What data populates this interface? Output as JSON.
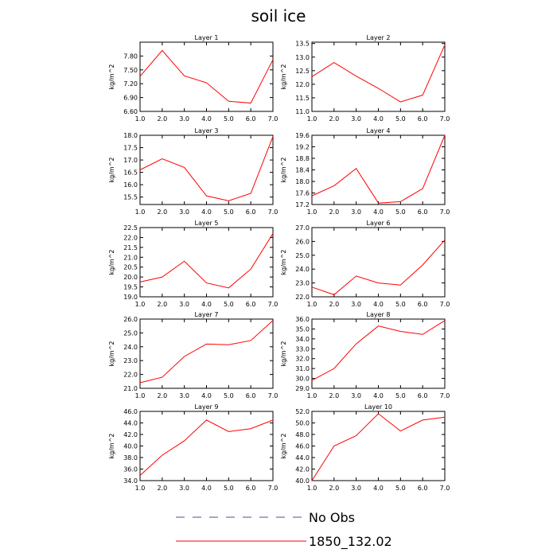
{
  "title": "soil ice",
  "legend": {
    "placement": "bottom-center",
    "entries": [
      {
        "label": "No Obs",
        "color": "#4b4b9a",
        "dash": true
      },
      {
        "label": "1850_132.02",
        "color": "#ff0000",
        "dash": false
      }
    ]
  },
  "chart_data": [
    {
      "type": "line",
      "title": "Layer 1",
      "xlabel": "",
      "ylabel": "kg/m^2",
      "x": [
        1,
        2,
        3,
        4,
        5,
        6,
        7
      ],
      "xlim": [
        1,
        7
      ],
      "xticks": [
        "1.0",
        "2.0",
        "3.0",
        "4.0",
        "5.0",
        "6.0",
        "7.0"
      ],
      "ylim": [
        6.6,
        8.1
      ],
      "yticks": [
        "6.60",
        "6.90",
        "7.20",
        "7.50",
        "7.80"
      ],
      "series": [
        {
          "name": "1850_132.02",
          "color": "#ff0000",
          "values": [
            7.36,
            7.92,
            7.37,
            7.22,
            6.82,
            6.78,
            7.72
          ]
        }
      ]
    },
    {
      "type": "line",
      "title": "Layer 2",
      "xlabel": "",
      "ylabel": "kg/m^2",
      "x": [
        1,
        2,
        3,
        4,
        5,
        6,
        7
      ],
      "xlim": [
        1,
        7
      ],
      "xticks": [
        "1.0",
        "2.0",
        "3.0",
        "4.0",
        "5.0",
        "6.0",
        "7.0"
      ],
      "ylim": [
        11.0,
        13.55
      ],
      "yticks": [
        "11.0",
        "11.5",
        "12.0",
        "12.5",
        "13.0",
        "13.5"
      ],
      "series": [
        {
          "name": "1850_132.02",
          "color": "#ff0000",
          "values": [
            12.28,
            12.8,
            12.3,
            11.85,
            11.35,
            11.6,
            13.45
          ]
        }
      ]
    },
    {
      "type": "line",
      "title": "Layer 3",
      "xlabel": "",
      "ylabel": "kg/m^2",
      "x": [
        1,
        2,
        3,
        4,
        5,
        6,
        7
      ],
      "xlim": [
        1,
        7
      ],
      "xticks": [
        "1.0",
        "2.0",
        "3.0",
        "4.0",
        "5.0",
        "6.0",
        "7.0"
      ],
      "ylim": [
        15.2,
        18.0
      ],
      "yticks": [
        "15.5",
        "16.0",
        "16.5",
        "17.0",
        "17.5",
        "18.0"
      ],
      "series": [
        {
          "name": "1850_132.02",
          "color": "#ff0000",
          "values": [
            16.6,
            17.05,
            16.7,
            15.55,
            15.35,
            15.65,
            17.95
          ]
        }
      ]
    },
    {
      "type": "line",
      "title": "Layer 4",
      "xlabel": "",
      "ylabel": "kg/m^2",
      "x": [
        1,
        2,
        3,
        4,
        5,
        6,
        7
      ],
      "xlim": [
        1,
        7
      ],
      "xticks": [
        "1.0",
        "2.0",
        "3.0",
        "4.0",
        "5.0",
        "6.0",
        "7.0"
      ],
      "ylim": [
        17.2,
        19.6
      ],
      "yticks": [
        "17.2",
        "17.6",
        "18.0",
        "18.4",
        "18.8",
        "19.2",
        "19.6"
      ],
      "series": [
        {
          "name": "1850_132.02",
          "color": "#ff0000",
          "values": [
            17.5,
            17.85,
            18.45,
            17.25,
            17.3,
            17.75,
            19.6
          ]
        }
      ]
    },
    {
      "type": "line",
      "title": "Layer 5",
      "xlabel": "",
      "ylabel": "kg/m^2",
      "x": [
        1,
        2,
        3,
        4,
        5,
        6,
        7
      ],
      "xlim": [
        1,
        7
      ],
      "xticks": [
        "1.0",
        "2.0",
        "3.0",
        "4.0",
        "5.0",
        "6.0",
        "7.0"
      ],
      "ylim": [
        19.0,
        22.5
      ],
      "yticks": [
        "19.0",
        "19.5",
        "20.0",
        "20.5",
        "21.0",
        "21.5",
        "22.0",
        "22.5"
      ],
      "series": [
        {
          "name": "1850_132.02",
          "color": "#ff0000",
          "values": [
            19.75,
            20.0,
            20.8,
            19.7,
            19.45,
            20.4,
            22.2
          ]
        }
      ]
    },
    {
      "type": "line",
      "title": "Layer 6",
      "xlabel": "",
      "ylabel": "kg/m^2",
      "x": [
        1,
        2,
        3,
        4,
        5,
        6,
        7
      ],
      "xlim": [
        1,
        7
      ],
      "xticks": [
        "1.0",
        "2.0",
        "3.0",
        "4.0",
        "5.0",
        "6.0",
        "7.0"
      ],
      "ylim": [
        22.0,
        27.0
      ],
      "yticks": [
        "22.0",
        "23.0",
        "24.0",
        "25.0",
        "26.0",
        "27.0"
      ],
      "series": [
        {
          "name": "1850_132.02",
          "color": "#ff0000",
          "values": [
            22.7,
            22.15,
            23.5,
            23.0,
            22.85,
            24.3,
            26.1
          ]
        }
      ]
    },
    {
      "type": "line",
      "title": "Layer 7",
      "xlabel": "",
      "ylabel": "kg/m^2",
      "x": [
        1,
        2,
        3,
        4,
        5,
        6,
        7
      ],
      "xlim": [
        1,
        7
      ],
      "xticks": [
        "1.0",
        "2.0",
        "3.0",
        "4.0",
        "5.0",
        "6.0",
        "7.0"
      ],
      "ylim": [
        21.0,
        26.0
      ],
      "yticks": [
        "21.0",
        "22.0",
        "23.0",
        "24.0",
        "25.0",
        "26.0"
      ],
      "series": [
        {
          "name": "1850_132.02",
          "color": "#ff0000",
          "values": [
            21.4,
            21.8,
            23.3,
            24.2,
            24.15,
            24.45,
            25.9
          ]
        }
      ]
    },
    {
      "type": "line",
      "title": "Layer 8",
      "xlabel": "",
      "ylabel": "kg/m^2",
      "x": [
        1,
        2,
        3,
        4,
        5,
        6,
        7
      ],
      "xlim": [
        1,
        7
      ],
      "xticks": [
        "1.0",
        "2.0",
        "3.0",
        "4.0",
        "5.0",
        "6.0",
        "7.0"
      ],
      "ylim": [
        29.0,
        36.0
      ],
      "yticks": [
        "29.0",
        "30.0",
        "31.0",
        "32.0",
        "33.0",
        "34.0",
        "35.0",
        "36.0"
      ],
      "series": [
        {
          "name": "1850_132.02",
          "color": "#ff0000",
          "values": [
            29.8,
            31.0,
            33.5,
            35.3,
            34.75,
            34.45,
            35.85
          ]
        }
      ]
    },
    {
      "type": "line",
      "title": "Layer 9",
      "xlabel": "",
      "ylabel": "kg/m^2",
      "x": [
        1,
        2,
        3,
        4,
        5,
        6,
        7
      ],
      "xlim": [
        1,
        7
      ],
      "xticks": [
        "1.0",
        "2.0",
        "3.0",
        "4.0",
        "5.0",
        "6.0",
        "7.0"
      ],
      "ylim": [
        34.0,
        46.0
      ],
      "yticks": [
        "34.0",
        "36.0",
        "38.0",
        "40.0",
        "42.0",
        "44.0",
        "46.0"
      ],
      "series": [
        {
          "name": "1850_132.02",
          "color": "#ff0000",
          "values": [
            34.9,
            38.4,
            40.9,
            44.5,
            42.5,
            43.0,
            44.5
          ]
        }
      ]
    },
    {
      "type": "line",
      "title": "Layer 10",
      "xlabel": "",
      "ylabel": "kg/m^2",
      "x": [
        1,
        2,
        3,
        4,
        5,
        6,
        7
      ],
      "xlim": [
        1,
        7
      ],
      "xticks": [
        "1.0",
        "2.0",
        "3.0",
        "4.0",
        "5.0",
        "6.0",
        "7.0"
      ],
      "ylim": [
        40.0,
        52.0
      ],
      "yticks": [
        "40.0",
        "42.0",
        "44.0",
        "46.0",
        "48.0",
        "50.0",
        "52.0"
      ],
      "series": [
        {
          "name": "1850_132.02",
          "color": "#ff0000",
          "values": [
            40.0,
            46.0,
            47.8,
            51.6,
            48.6,
            50.5,
            51.0
          ]
        }
      ]
    }
  ]
}
